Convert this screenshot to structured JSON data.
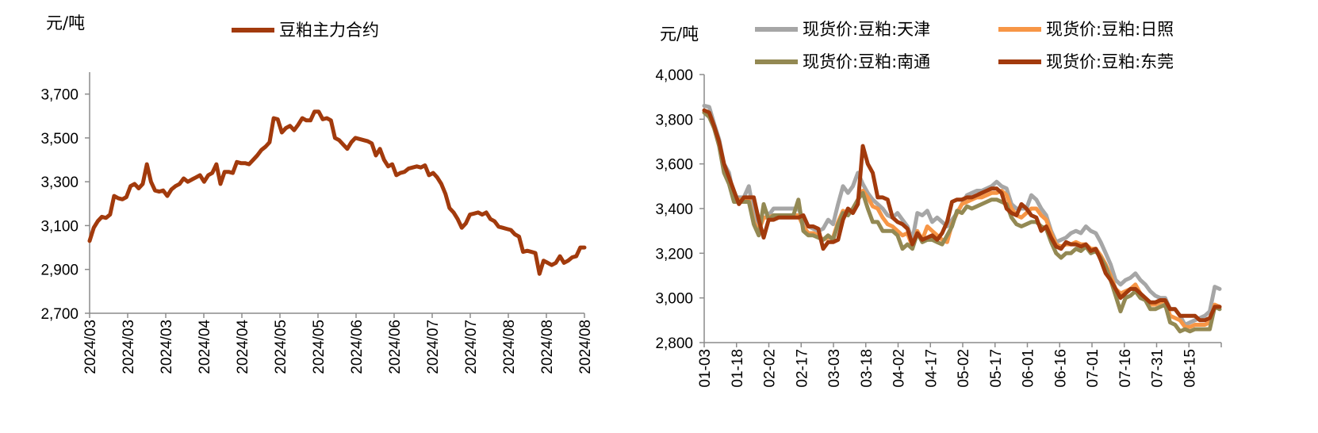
{
  "chart_data": [
    {
      "type": "line",
      "unit_label": "元/吨",
      "ylim": [
        2700,
        3800
      ],
      "yticks": [
        2700,
        2900,
        3100,
        3300,
        3500,
        3700
      ],
      "ytick_labels": [
        "2,700",
        "2,900",
        "3,100",
        "3,300",
        "3,500",
        "3,700"
      ],
      "xtick_labels": [
        "2024/03",
        "2024/03",
        "2024/03",
        "2024/04",
        "2024/04",
        "2024/05",
        "2024/05",
        "2024/06",
        "2024/06",
        "2024/07",
        "2024/07",
        "2024/08",
        "2024/08",
        "2024/08"
      ],
      "legend_position": "top-center",
      "series": [
        {
          "name": "豆粕主力合约",
          "color": "#a23a0c",
          "values": [
            3030,
            3090,
            3120,
            3140,
            3135,
            3150,
            3235,
            3225,
            3220,
            3230,
            3280,
            3290,
            3270,
            3290,
            3380,
            3300,
            3260,
            3255,
            3260,
            3235,
            3265,
            3280,
            3290,
            3315,
            3300,
            3310,
            3320,
            3330,
            3300,
            3330,
            3340,
            3380,
            3290,
            3345,
            3345,
            3340,
            3390,
            3385,
            3385,
            3380,
            3400,
            3420,
            3445,
            3460,
            3480,
            3590,
            3585,
            3525,
            3545,
            3555,
            3535,
            3560,
            3590,
            3580,
            3580,
            3620,
            3620,
            3585,
            3590,
            3580,
            3500,
            3490,
            3470,
            3450,
            3480,
            3500,
            3495,
            3490,
            3485,
            3475,
            3420,
            3450,
            3400,
            3370,
            3380,
            3330,
            3340,
            3345,
            3360,
            3365,
            3370,
            3365,
            3375,
            3330,
            3340,
            3320,
            3290,
            3245,
            3180,
            3160,
            3130,
            3090,
            3110,
            3150,
            3155,
            3160,
            3150,
            3160,
            3130,
            3120,
            3095,
            3090,
            3085,
            3080,
            3060,
            3050,
            2980,
            2985,
            2980,
            2975,
            2880,
            2940,
            2930,
            2920,
            2930,
            2960,
            2930,
            2940,
            2955,
            2960,
            3000,
            3000
          ]
        }
      ]
    },
    {
      "type": "line",
      "unit_label": "元/吨",
      "ylim": [
        2800,
        4000
      ],
      "yticks": [
        2800,
        3000,
        3200,
        3400,
        3600,
        3800,
        4000
      ],
      "ytick_labels": [
        "2,800",
        "3,000",
        "3,200",
        "3,400",
        "3,600",
        "3,800",
        "4,000"
      ],
      "xtick_labels": [
        "01-03",
        "01-18",
        "02-02",
        "02-17",
        "03-03",
        "03-18",
        "04-02",
        "04-17",
        "05-02",
        "05-17",
        "06-01",
        "06-16",
        "07-01",
        "07-16",
        "07-31",
        "08-15"
      ],
      "legend_position": "top",
      "series": [
        {
          "name": "现货价:豆粕:天津",
          "color": "#a6a6a6",
          "values": [
            3860,
            3855,
            3780,
            3710,
            3600,
            3560,
            3450,
            3450,
            3450,
            3500,
            3380,
            3320,
            3400,
            3370,
            3400,
            3400,
            3400,
            3400,
            3400,
            3400,
            3350,
            3320,
            3310,
            3300,
            3310,
            3350,
            3330,
            3420,
            3500,
            3470,
            3500,
            3560,
            3510,
            3470,
            3440,
            3420,
            3400,
            3370,
            3360,
            3380,
            3350,
            3320,
            3260,
            3380,
            3370,
            3390,
            3340,
            3360,
            3340,
            3320,
            3350,
            3380,
            3420,
            3460,
            3470,
            3480,
            3480,
            3490,
            3500,
            3520,
            3500,
            3490,
            3420,
            3400,
            3400,
            3400,
            3460,
            3440,
            3400,
            3370,
            3300,
            3250,
            3260,
            3270,
            3290,
            3300,
            3290,
            3320,
            3300,
            3290,
            3250,
            3200,
            3150,
            3080,
            3060,
            3080,
            3090,
            3110,
            3080,
            3060,
            3030,
            3010,
            3000,
            3000,
            2950,
            2950,
            2920,
            2880,
            2890,
            2900,
            2910,
            2920,
            2940,
            3050,
            3040
          ]
        },
        {
          "name": "现货价:豆粕:日照",
          "color": "#f79646",
          "values": [
            3830,
            3820,
            3760,
            3690,
            3580,
            3520,
            3440,
            3440,
            3440,
            3440,
            3340,
            3300,
            3360,
            3360,
            3370,
            3370,
            3370,
            3370,
            3370,
            3370,
            3320,
            3290,
            3290,
            3280,
            3260,
            3270,
            3270,
            3340,
            3390,
            3380,
            3400,
            3440,
            3480,
            3450,
            3410,
            3400,
            3360,
            3330,
            3320,
            3300,
            3280,
            3290,
            3230,
            3300,
            3260,
            3320,
            3300,
            3280,
            3260,
            3250,
            3330,
            3380,
            3420,
            3430,
            3440,
            3450,
            3450,
            3460,
            3470,
            3470,
            3480,
            3460,
            3400,
            3370,
            3360,
            3380,
            3400,
            3400,
            3370,
            3350,
            3290,
            3240,
            3230,
            3240,
            3240,
            3250,
            3240,
            3240,
            3220,
            3220,
            3190,
            3150,
            3100,
            3040,
            3020,
            3030,
            3040,
            3060,
            3020,
            2990,
            2970,
            2970,
            2980,
            2990,
            2920,
            2910,
            2900,
            2870,
            2870,
            2880,
            2880,
            2880,
            2890,
            2970,
            2960
          ]
        },
        {
          "name": "现货价:豆粕:南通",
          "color": "#938953",
          "values": [
            3830,
            3810,
            3760,
            3680,
            3560,
            3510,
            3430,
            3430,
            3430,
            3430,
            3330,
            3280,
            3420,
            3350,
            3370,
            3370,
            3370,
            3370,
            3370,
            3440,
            3300,
            3280,
            3280,
            3270,
            3260,
            3280,
            3260,
            3330,
            3380,
            3370,
            3400,
            3440,
            3470,
            3400,
            3340,
            3340,
            3300,
            3300,
            3300,
            3280,
            3220,
            3240,
            3220,
            3290,
            3250,
            3260,
            3260,
            3250,
            3240,
            3280,
            3320,
            3390,
            3380,
            3410,
            3400,
            3410,
            3420,
            3430,
            3440,
            3440,
            3430,
            3420,
            3360,
            3330,
            3320,
            3330,
            3340,
            3340,
            3320,
            3310,
            3250,
            3200,
            3180,
            3200,
            3200,
            3220,
            3210,
            3230,
            3200,
            3210,
            3180,
            3140,
            3080,
            3010,
            2940,
            3000,
            3010,
            3030,
            3000,
            2990,
            2950,
            2950,
            2960,
            2970,
            2890,
            2880,
            2850,
            2860,
            2850,
            2860,
            2860,
            2860,
            2860,
            2960,
            2950
          ]
        },
        {
          "name": "现货价:豆粕:东莞",
          "color": "#a23a0c",
          "values": [
            3840,
            3830,
            3770,
            3700,
            3600,
            3540,
            3480,
            3420,
            3450,
            3450,
            3450,
            3350,
            3270,
            3350,
            3350,
            3360,
            3360,
            3360,
            3360,
            3360,
            3370,
            3320,
            3320,
            3310,
            3220,
            3250,
            3250,
            3260,
            3350,
            3400,
            3380,
            3420,
            3680,
            3600,
            3560,
            3450,
            3450,
            3440,
            3360,
            3340,
            3330,
            3310,
            3240,
            3290,
            3260,
            3270,
            3280,
            3260,
            3290,
            3340,
            3430,
            3440,
            3440,
            3450,
            3450,
            3460,
            3470,
            3480,
            3490,
            3490,
            3470,
            3400,
            3380,
            3370,
            3420,
            3400,
            3370,
            3360,
            3300,
            3320,
            3270,
            3230,
            3220,
            3250,
            3240,
            3240,
            3230,
            3240,
            3210,
            3220,
            3170,
            3110,
            3080,
            3040,
            3000,
            3020,
            3040,
            3040,
            3020,
            3000,
            2980,
            2980,
            2990,
            2990,
            2950,
            2950,
            2920,
            2920,
            2920,
            2920,
            2900,
            2900,
            2910,
            2960,
            2960
          ]
        }
      ]
    }
  ]
}
